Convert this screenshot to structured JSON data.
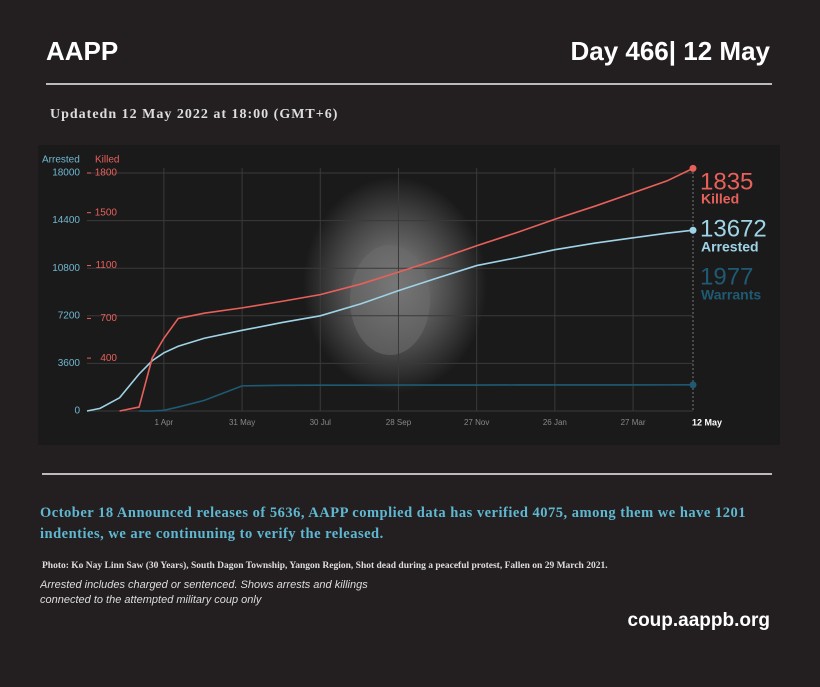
{
  "header": {
    "brand": "AAPP",
    "day": "Day 466| 12 May",
    "updated": "Updatedn 12 May 2022 at 18:00 (GMT+6)"
  },
  "chart_data": {
    "type": "line",
    "ylabel": "Arrested",
    "y2label": "Killed",
    "xlim": [
      0,
      465
    ],
    "xticks": [
      {
        "value": 59,
        "label": "1 Apr"
      },
      {
        "value": 119,
        "label": "31 May"
      },
      {
        "value": 179,
        "label": "30 Jul"
      },
      {
        "value": 239,
        "label": "28 Sep"
      },
      {
        "value": 299,
        "label": "27 Nov"
      },
      {
        "value": 359,
        "label": "26 Jan"
      },
      {
        "value": 419,
        "label": "27 Mar"
      },
      {
        "value": 465,
        "label": "12 May"
      }
    ],
    "ylim": [
      0,
      18000
    ],
    "yticks": [
      0,
      3600,
      7200,
      10800,
      14400,
      18000
    ],
    "y2lim": [
      0,
      1800
    ],
    "y2ticks": [
      400,
      700,
      1100,
      1500,
      1800
    ],
    "grid": true,
    "x": [
      0,
      10,
      25,
      40,
      50,
      59,
      70,
      90,
      119,
      150,
      179,
      210,
      239,
      270,
      299,
      330,
      359,
      390,
      419,
      445,
      465
    ],
    "series": [
      {
        "name": "Arrested",
        "color": "#9fd3e6",
        "values": [
          0,
          200,
          1000,
          2800,
          3800,
          4400,
          4900,
          5500,
          6100,
          6700,
          7200,
          8100,
          9100,
          10100,
          11000,
          11600,
          12200,
          12700,
          13100,
          13450,
          13672
        ]
      },
      {
        "name": "Killed",
        "color": "#e8605a",
        "axis": "y2",
        "values": [
          null,
          null,
          0,
          30,
          400,
          550,
          700,
          740,
          780,
          830,
          880,
          960,
          1050,
          1150,
          1250,
          1350,
          1450,
          1550,
          1650,
          1740,
          1835
        ]
      },
      {
        "name": "Warrants",
        "color": "#1e5a73",
        "values": [
          null,
          null,
          null,
          0,
          0,
          50,
          300,
          800,
          1900,
          1940,
          1950,
          1955,
          1960,
          1962,
          1965,
          1968,
          1970,
          1972,
          1974,
          1976,
          1977
        ]
      }
    ]
  },
  "note": "October 18 Announced releases of 5636, AAPP complied data has verified 4075, among them we have 1201 indenties, we are continuning to verify the released.",
  "caption": "Photo: Ko Nay Linn Saw (30 Years), South Dagon Township, Yangon Region, Shot dead during a peaceful protest, Fallen on  29 March 2021.",
  "footnote": "Arrested includes charged or sentenced. Shows arrests and killings connected to the attempted military coup only",
  "url": "coup.aappb.org"
}
